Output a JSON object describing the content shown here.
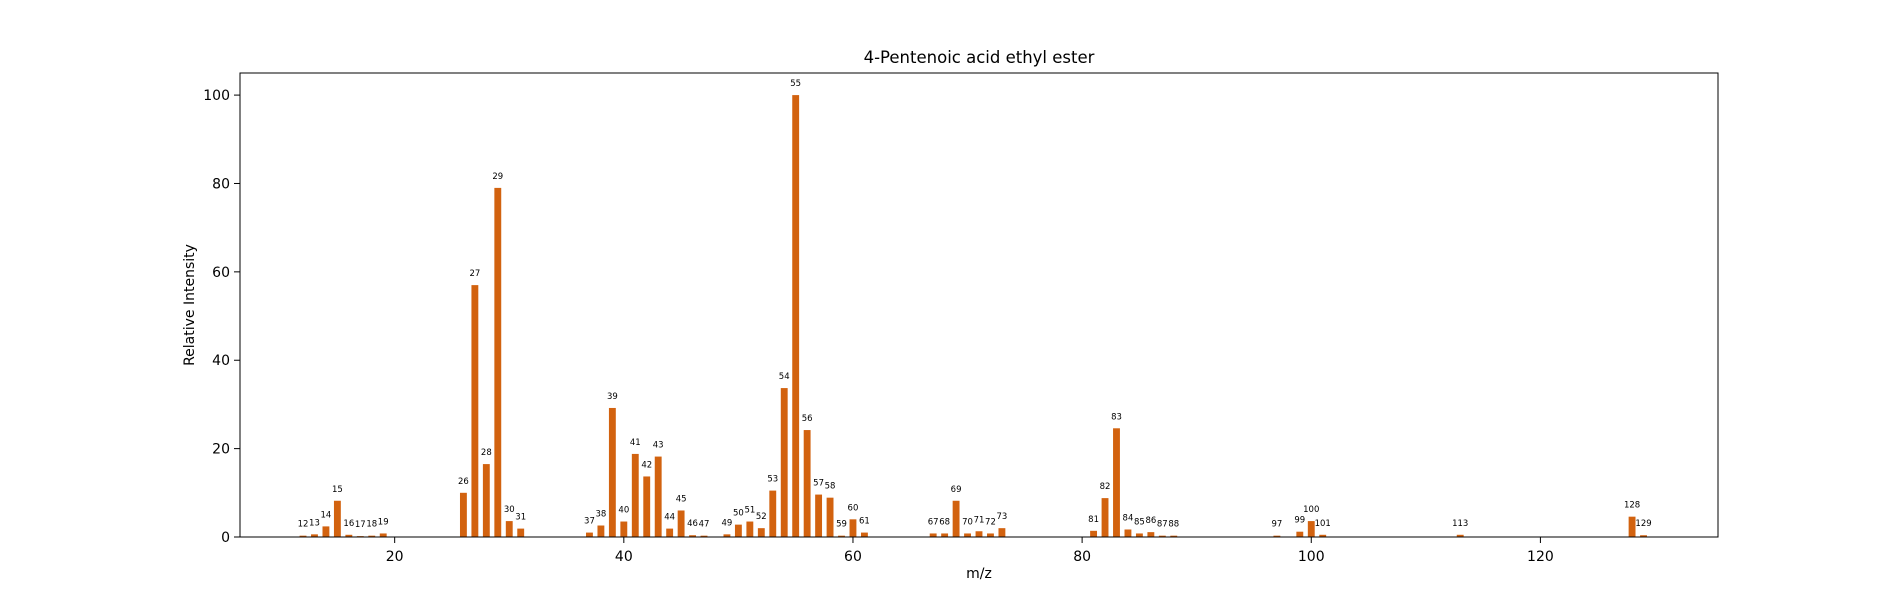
{
  "chart_data": {
    "type": "bar",
    "title": "4-Pentenoic acid ethyl ester",
    "xlabel": "m/z",
    "ylabel": "Relative Intensity",
    "xlim": [
      6.5,
      135.5
    ],
    "ylim": [
      0,
      105
    ],
    "xticks": [
      20,
      40,
      60,
      80,
      100,
      120
    ],
    "yticks": [
      0,
      20,
      40,
      60,
      80,
      100
    ],
    "grid": false,
    "bar_color": "#d2620f",
    "x": [
      12,
      13,
      14,
      15,
      16,
      17,
      18,
      19,
      26,
      27,
      28,
      29,
      30,
      31,
      37,
      38,
      39,
      40,
      41,
      42,
      43,
      44,
      45,
      46,
      47,
      49,
      50,
      51,
      52,
      53,
      54,
      55,
      56,
      57,
      58,
      59,
      60,
      61,
      67,
      68,
      69,
      70,
      71,
      72,
      73,
      81,
      82,
      83,
      84,
      85,
      86,
      87,
      88,
      97,
      99,
      100,
      101,
      113,
      128,
      129
    ],
    "values": [
      0.3,
      0.6,
      2.4,
      8.2,
      0.5,
      0.2,
      0.3,
      0.8,
      10.0,
      57.0,
      16.5,
      79.0,
      3.6,
      1.9,
      1.0,
      2.6,
      29.2,
      3.5,
      18.8,
      13.7,
      18.2,
      1.9,
      6.0,
      0.4,
      0.3,
      0.6,
      2.8,
      3.5,
      2.0,
      10.5,
      33.7,
      100.0,
      24.2,
      9.6,
      8.9,
      0.3,
      4.0,
      1.0,
      0.8,
      0.8,
      8.2,
      0.8,
      1.3,
      0.8,
      2.0,
      1.4,
      8.8,
      24.6,
      1.7,
      0.8,
      1.1,
      0.3,
      0.3,
      0.3,
      1.2,
      3.6,
      0.5,
      0.5,
      4.6,
      0.4
    ],
    "labels": [
      "12",
      "13",
      "14",
      "15",
      "16",
      "17",
      "18",
      "19",
      "26",
      "27",
      "28",
      "29",
      "30",
      "31",
      "37",
      "38",
      "39",
      "40",
      "41",
      "42",
      "43",
      "44",
      "45",
      "46",
      "47",
      "49",
      "50",
      "51",
      "52",
      "53",
      "54",
      "55",
      "56",
      "57",
      "58",
      "59",
      "60",
      "61",
      "67",
      "68",
      "69",
      "70",
      "71",
      "72",
      "73",
      "81",
      "82",
      "83",
      "84",
      "85",
      "86",
      "87",
      "88",
      "97",
      "99",
      "100",
      "101",
      "113",
      "128",
      "129"
    ]
  }
}
